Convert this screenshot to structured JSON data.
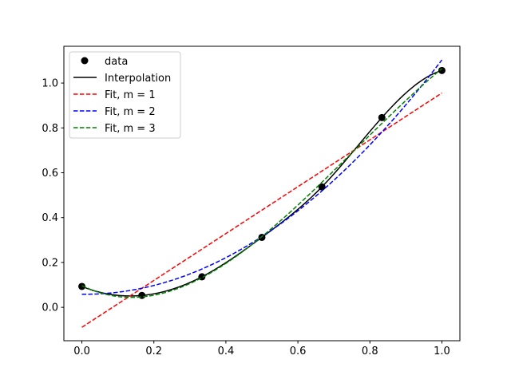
{
  "chart_data": {
    "type": "line",
    "title": "",
    "xlabel": "",
    "ylabel": "",
    "xlim": [
      -0.05,
      1.05
    ],
    "ylim": [
      -0.149,
      1.164
    ],
    "grid": false,
    "legend_placement": "top-left",
    "x_ticks": [
      "0.0",
      "0.2",
      "0.4",
      "0.6",
      "0.8",
      "1.0"
    ],
    "y_ticks": [
      "0.0",
      "0.2",
      "0.4",
      "0.6",
      "0.8",
      "1.0"
    ],
    "data": {
      "name": "data",
      "x": [
        0,
        0.1667,
        0.3333,
        0.5,
        0.6667,
        0.8333,
        1.0
      ],
      "y": [
        0.093,
        0.053,
        0.136,
        0.312,
        0.537,
        0.846,
        1.056
      ],
      "color": "#000000"
    },
    "series": [
      {
        "name": "Interpolation",
        "kind": "interpolation",
        "style": "solid",
        "color": "#000000"
      },
      {
        "name": "Fit, m = 1",
        "kind": "polyfit",
        "degree": 1,
        "style": "dashed",
        "color": "#ff0000"
      },
      {
        "name": "Fit, m = 2",
        "kind": "polyfit",
        "degree": 2,
        "style": "dashed",
        "color": "#0000ff"
      },
      {
        "name": "Fit, m = 3",
        "kind": "polyfit",
        "degree": 3,
        "style": "dashed",
        "color": "#008000"
      }
    ]
  }
}
